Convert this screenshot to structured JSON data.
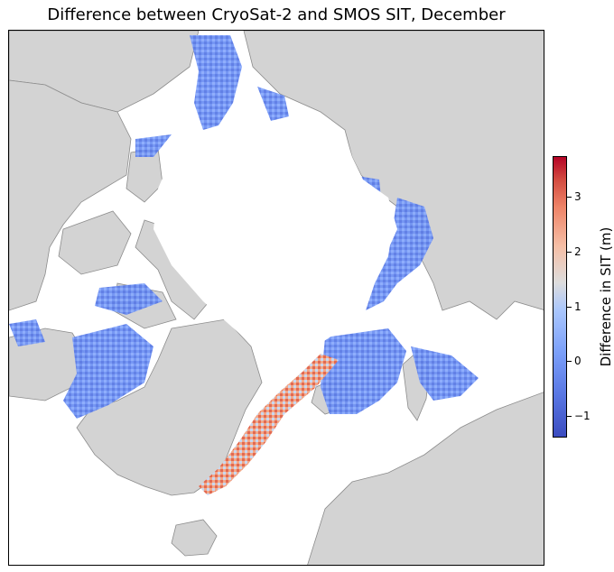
{
  "title": "Difference between CryoSat-2 and SMOS SIT, December",
  "colors": {
    "land": "#d3d3d3",
    "coast": "#8c8c8c",
    "ocean": "#ffffff",
    "cmap_low": "#3b4cc0",
    "cmap_mid": "#dddddd",
    "cmap_high": "#b40426"
  },
  "colorbar": {
    "label": "Difference in SIT (m)",
    "vmin": -1.4,
    "vmax": 3.75,
    "ticks": [
      {
        "value": -1,
        "label": "−1"
      },
      {
        "value": 0,
        "label": "0"
      },
      {
        "value": 1,
        "label": "1"
      },
      {
        "value": 2,
        "label": "2"
      },
      {
        "value": 3,
        "label": "3"
      }
    ]
  }
}
